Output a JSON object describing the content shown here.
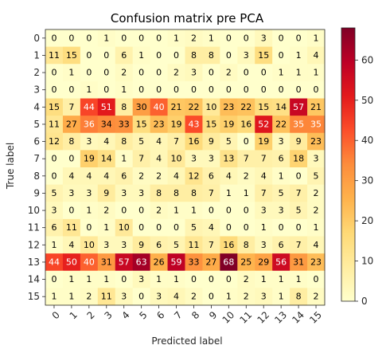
{
  "chart_data": {
    "type": "heatmap",
    "title": "Confusion matrix pre PCA",
    "xlabel": "Predicted label",
    "ylabel": "True label",
    "x_categories": [
      "0",
      "1",
      "2",
      "3",
      "4",
      "5",
      "6",
      "7",
      "8",
      "9",
      "10",
      "11",
      "12",
      "13",
      "14",
      "15"
    ],
    "y_categories": [
      "0",
      "1",
      "2",
      "3",
      "4",
      "5",
      "6",
      "7",
      "8",
      "9",
      "10",
      "11",
      "12",
      "13",
      "14",
      "15"
    ],
    "matrix": [
      [
        0,
        0,
        0,
        1,
        0,
        0,
        0,
        1,
        2,
        1,
        0,
        0,
        3,
        0,
        0,
        1
      ],
      [
        11,
        15,
        0,
        0,
        6,
        1,
        0,
        0,
        8,
        8,
        0,
        3,
        15,
        0,
        1,
        4
      ],
      [
        0,
        1,
        0,
        0,
        2,
        0,
        0,
        2,
        3,
        0,
        2,
        0,
        0,
        1,
        1,
        1
      ],
      [
        0,
        0,
        1,
        0,
        1,
        0,
        0,
        0,
        0,
        0,
        0,
        0,
        0,
        0,
        0,
        0
      ],
      [
        15,
        7,
        44,
        51,
        8,
        30,
        40,
        21,
        22,
        10,
        23,
        22,
        15,
        14,
        57,
        21
      ],
      [
        11,
        27,
        36,
        34,
        33,
        15,
        23,
        19,
        43,
        15,
        19,
        16,
        52,
        22,
        35,
        35
      ],
      [
        12,
        8,
        3,
        4,
        8,
        5,
        4,
        7,
        16,
        9,
        5,
        0,
        19,
        3,
        9,
        23
      ],
      [
        0,
        0,
        19,
        14,
        1,
        7,
        4,
        10,
        3,
        3,
        13,
        7,
        7,
        6,
        18,
        3
      ],
      [
        0,
        4,
        4,
        4,
        6,
        2,
        2,
        4,
        12,
        6,
        4,
        2,
        4,
        1,
        0,
        5
      ],
      [
        5,
        3,
        3,
        9,
        3,
        3,
        8,
        8,
        8,
        7,
        1,
        1,
        7,
        5,
        7,
        2
      ],
      [
        3,
        0,
        1,
        2,
        0,
        0,
        2,
        1,
        1,
        0,
        0,
        0,
        3,
        3,
        5,
        2
      ],
      [
        6,
        11,
        0,
        1,
        10,
        0,
        0,
        0,
        5,
        4,
        0,
        0,
        1,
        0,
        0,
        1
      ],
      [
        1,
        4,
        10,
        3,
        3,
        9,
        6,
        5,
        11,
        7,
        16,
        8,
        3,
        6,
        7,
        4
      ],
      [
        44,
        50,
        40,
        31,
        57,
        63,
        26,
        59,
        33,
        27,
        68,
        25,
        29,
        56,
        31,
        23
      ],
      [
        0,
        1,
        1,
        1,
        0,
        3,
        1,
        1,
        0,
        0,
        0,
        2,
        1,
        1,
        1,
        0
      ],
      [
        1,
        1,
        2,
        11,
        3,
        0,
        3,
        4,
        2,
        0,
        1,
        2,
        3,
        1,
        8,
        2
      ]
    ],
    "color_scale": "YlOrRd",
    "vmin": 0,
    "vmax": 68,
    "colorbar_ticks": [
      "0",
      "10",
      "20",
      "30",
      "40",
      "50",
      "60"
    ],
    "x_tick_rotation": "45deg"
  }
}
